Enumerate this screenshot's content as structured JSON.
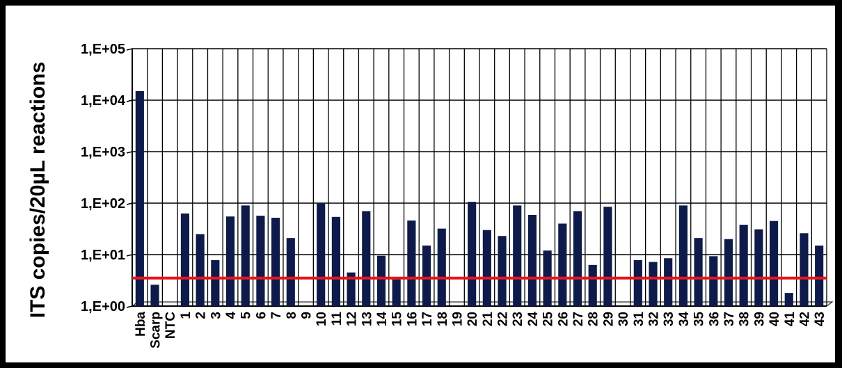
{
  "chart_data": {
    "type": "bar",
    "ylabel": "ITS copies/20µL reactions",
    "yscale": "log",
    "ylim": [
      1,
      100000
    ],
    "yticks": [
      1,
      10,
      100,
      1000,
      10000,
      100000
    ],
    "yticklabels": [
      "1,E+00",
      "1,E+01",
      "1,E+02",
      "1,E+03",
      "1,E+04",
      "1,E+05"
    ],
    "grid": true,
    "bar_color": "#0d1a4a",
    "threshold": {
      "value": 3.5,
      "color": "#e8141c"
    },
    "categories": [
      "Hba",
      "Scarp",
      "NTC",
      "1",
      "2",
      "3",
      "4",
      "5",
      "6",
      "7",
      "8",
      "9",
      "10",
      "11",
      "12",
      "13",
      "14",
      "15",
      "16",
      "17",
      "18",
      "19",
      "20",
      "21",
      "22",
      "23",
      "24",
      "25",
      "26",
      "27",
      "28",
      "29",
      "30",
      "31",
      "32",
      "33",
      "34",
      "35",
      "36",
      "37",
      "38",
      "39",
      "40",
      "41",
      "42",
      "43"
    ],
    "values": [
      15000,
      2.6,
      null,
      63,
      25,
      7.8,
      55,
      90,
      57,
      52,
      21,
      null,
      100,
      54,
      4.5,
      70,
      9.5,
      3.3,
      46,
      15,
      32,
      null,
      106,
      30,
      23,
      90,
      59,
      12,
      40,
      70,
      6.3,
      85,
      null,
      7.8,
      7.2,
      8.5,
      90,
      21,
      9.3,
      20,
      38,
      31,
      45,
      1.8,
      26,
      15
    ]
  }
}
